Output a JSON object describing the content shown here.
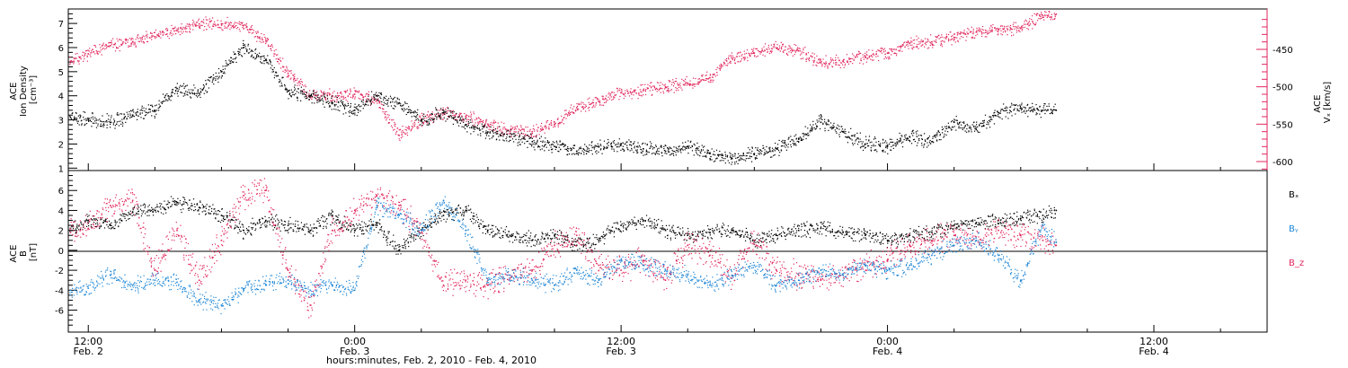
{
  "figure": {
    "xlabel": "hours:minutes, Feb.  2, 2010 - Feb.  4, 2010"
  },
  "colors": {
    "black": "#000000",
    "pink": "#e0265c",
    "blue": "#1f87d6"
  },
  "x_ticks": [
    {
      "t": 12,
      "time": "12:00",
      "date": "Feb. 2"
    },
    {
      "t": 24,
      "time": "0:00",
      "date": "Feb. 3"
    },
    {
      "t": 36,
      "time": "12:00",
      "date": "Feb. 3"
    },
    {
      "t": 48,
      "time": "0:00",
      "date": "Feb. 4"
    },
    {
      "t": 60,
      "time": "12:00",
      "date": "Feb. 4"
    }
  ],
  "chart_data": [
    {
      "type": "scatter",
      "panel": "top",
      "title": "",
      "xlabel": "hours:minutes, Feb.  2, 2010 - Feb.  4, 2010",
      "xlim": [
        11.1,
        65.1
      ],
      "ylabel": "ACE\nIon Density\n[cm^-3]",
      "ylabel_lines": [
        "ACE",
        "Ion Density",
        "[cm⁻³]"
      ],
      "ylim": [
        0.9,
        7.6
      ],
      "yticks": [
        1,
        2,
        3,
        4,
        5,
        6,
        7
      ],
      "y2label": "ACE V_x [km/s]",
      "y2label_lines": [
        "ACE",
        "Vₓ [km/s]"
      ],
      "y2lim": [
        -612,
        -396
      ],
      "y2ticks": [
        -600,
        -550,
        -500,
        -450
      ],
      "series": [
        {
          "name": "",
          "axis": "left",
          "color": "#000000",
          "x": [
            11.2,
            12,
            13,
            14,
            15,
            16,
            17,
            18,
            19,
            20,
            21,
            22,
            23,
            24,
            25,
            26,
            27,
            28,
            29,
            30,
            31,
            32,
            33,
            34,
            35,
            36,
            37,
            38,
            39,
            40,
            41,
            42,
            43,
            44,
            45,
            46,
            47,
            48,
            49,
            50,
            51,
            52,
            53,
            54,
            55,
            55.6
          ],
          "values": [
            3.1,
            3.0,
            2.9,
            3.2,
            3.4,
            4.3,
            4.1,
            5.0,
            6.0,
            5.5,
            4.2,
            4.0,
            3.7,
            3.4,
            4.0,
            3.7,
            3.0,
            3.3,
            2.8,
            2.5,
            2.3,
            2.1,
            1.9,
            1.7,
            1.9,
            2.0,
            1.8,
            1.7,
            1.9,
            1.6,
            1.4,
            1.6,
            1.8,
            2.2,
            2.9,
            2.5,
            2.0,
            1.9,
            2.3,
            2.1,
            2.9,
            2.6,
            3.3,
            3.5,
            3.4,
            3.4
          ]
        },
        {
          "name": "",
          "axis": "right",
          "color": "#e0265c",
          "x": [
            11.2,
            12,
            13,
            14,
            15,
            16,
            17,
            18,
            19,
            20,
            21,
            22,
            23,
            24,
            25,
            26,
            27,
            28,
            29,
            30,
            31,
            32,
            33,
            34,
            35,
            36,
            37,
            38,
            39,
            40,
            41,
            42,
            43,
            44,
            45,
            46,
            47,
            48,
            49,
            50,
            51,
            52,
            53,
            54,
            55,
            55.6
          ],
          "values": [
            -466,
            -456,
            -445,
            -440,
            -433,
            -425,
            -416,
            -416,
            -418,
            -438,
            -482,
            -512,
            -512,
            -510,
            -518,
            -565,
            -545,
            -535,
            -540,
            -550,
            -560,
            -560,
            -550,
            -528,
            -520,
            -508,
            -505,
            -500,
            -495,
            -488,
            -462,
            -455,
            -448,
            -452,
            -468,
            -466,
            -460,
            -455,
            -442,
            -440,
            -434,
            -427,
            -424,
            -422,
            -405,
            -403
          ]
        }
      ]
    },
    {
      "type": "scatter",
      "panel": "bottom",
      "title": "",
      "xlabel": "hours:minutes, Feb.  2, 2010 - Feb.  4, 2010",
      "xlim": [
        11.1,
        65.1
      ],
      "ylabel": "ACE\nB\n[nT]",
      "ylabel_lines": [
        "ACE",
        "B",
        "[nT]"
      ],
      "ylim": [
        -8.2,
        8.0
      ],
      "yticks": [
        -6,
        -4,
        -2,
        0,
        2,
        4,
        6
      ],
      "zero_line": true,
      "series": [
        {
          "name": "Bₓ",
          "color": "#000000",
          "x": [
            11.2,
            12,
            13,
            14,
            15,
            16,
            17,
            18,
            19,
            20,
            21,
            22,
            23,
            24,
            25,
            26,
            27,
            28,
            29,
            30,
            31,
            32,
            33,
            34,
            35,
            36,
            37,
            38,
            39,
            40,
            41,
            42,
            43,
            44,
            45,
            46,
            47,
            48,
            49,
            50,
            51,
            52,
            53,
            54,
            55,
            55.6
          ],
          "values": [
            2.2,
            3.0,
            2.5,
            3.8,
            4.0,
            4.8,
            4.3,
            3.5,
            2.0,
            3.0,
            2.5,
            2.0,
            3.5,
            2.0,
            2.5,
            0.0,
            2.0,
            3.5,
            4.0,
            2.0,
            1.5,
            1.0,
            1.5,
            0.5,
            1.0,
            2.5,
            3.0,
            2.0,
            1.5,
            1.8,
            2.0,
            1.0,
            1.5,
            2.0,
            2.2,
            1.8,
            1.5,
            1.0,
            1.5,
            1.8,
            2.5,
            2.8,
            3.0,
            3.2,
            3.5,
            4.0
          ]
        },
        {
          "name": "Bᵧ",
          "color": "#1f87d6",
          "x": [
            11.2,
            12,
            13,
            14,
            15,
            16,
            17,
            18,
            19,
            20,
            21,
            22,
            23,
            24,
            25,
            26,
            27,
            28,
            29,
            30,
            31,
            32,
            33,
            34,
            35,
            36,
            37,
            38,
            39,
            40,
            41,
            42,
            43,
            44,
            45,
            46,
            47,
            48,
            49,
            50,
            51,
            52,
            53,
            54,
            55,
            55.6
          ],
          "values": [
            -4.0,
            -3.8,
            -2.5,
            -3.5,
            -3.0,
            -3.2,
            -5.0,
            -5.5,
            -4.0,
            -3.5,
            -3.0,
            -4.0,
            -3.5,
            -4.0,
            4.5,
            3.5,
            2.0,
            5.0,
            2.0,
            -3.0,
            -2.5,
            -3.0,
            -3.5,
            -2.0,
            -3.0,
            -1.0,
            -1.5,
            -2.0,
            -2.5,
            -3.5,
            -2.5,
            -1.5,
            -3.5,
            -3.0,
            -2.0,
            -2.5,
            -1.5,
            -2.0,
            -1.5,
            -0.5,
            0.5,
            1.0,
            -0.5,
            -3.0,
            2.5,
            0.8
          ]
        },
        {
          "name": "B_z",
          "color": "#e0265c",
          "x": [
            11.2,
            12,
            13,
            14,
            15,
            16,
            17,
            18,
            19,
            20,
            21,
            22,
            23,
            24,
            25,
            26,
            27,
            28,
            29,
            30,
            31,
            32,
            33,
            34,
            35,
            36,
            37,
            38,
            39,
            40,
            41,
            42,
            43,
            44,
            45,
            46,
            47,
            48,
            49,
            50,
            51,
            52,
            53,
            54,
            55,
            55.6
          ],
          "values": [
            1.8,
            2.2,
            4.5,
            5.0,
            -2.0,
            2.0,
            -3.0,
            1.0,
            5.5,
            6.0,
            -2.0,
            -5.5,
            2.0,
            4.0,
            5.5,
            4.5,
            2.0,
            -3.5,
            -3.0,
            -3.5,
            -2.5,
            -2.0,
            0.5,
            1.5,
            -1.5,
            -2.0,
            -1.0,
            -3.0,
            0.5,
            -0.5,
            -2.5,
            1.0,
            -2.0,
            -2.5,
            -3.0,
            -2.5,
            -1.5,
            -1.0,
            0.5,
            1.0,
            1.5,
            1.0,
            2.0,
            1.5,
            1.0,
            0.5
          ]
        }
      ]
    }
  ]
}
